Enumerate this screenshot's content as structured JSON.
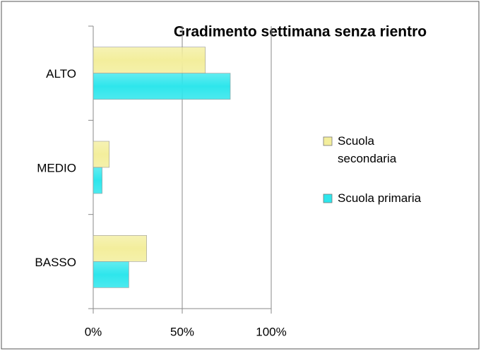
{
  "chart_data": {
    "type": "bar",
    "orientation": "horizontal",
    "title": "Gradimento settimana senza rientro",
    "categories": [
      "ALTO",
      "MEDIO",
      "BASSO"
    ],
    "series": [
      {
        "name": "Scuola secondaria",
        "color": "#f3ee9c",
        "values": [
          63,
          9,
          30
        ]
      },
      {
        "name": "Scuola primaria",
        "color": "#2ee6ec",
        "values": [
          77,
          5,
          20
        ]
      }
    ],
    "xlim": [
      0,
      100
    ],
    "xticks": [
      {
        "value": 0,
        "label": "0%"
      },
      {
        "value": 50,
        "label": "50%"
      },
      {
        "value": 100,
        "label": "100%"
      }
    ],
    "grid": true,
    "legend": "right"
  }
}
